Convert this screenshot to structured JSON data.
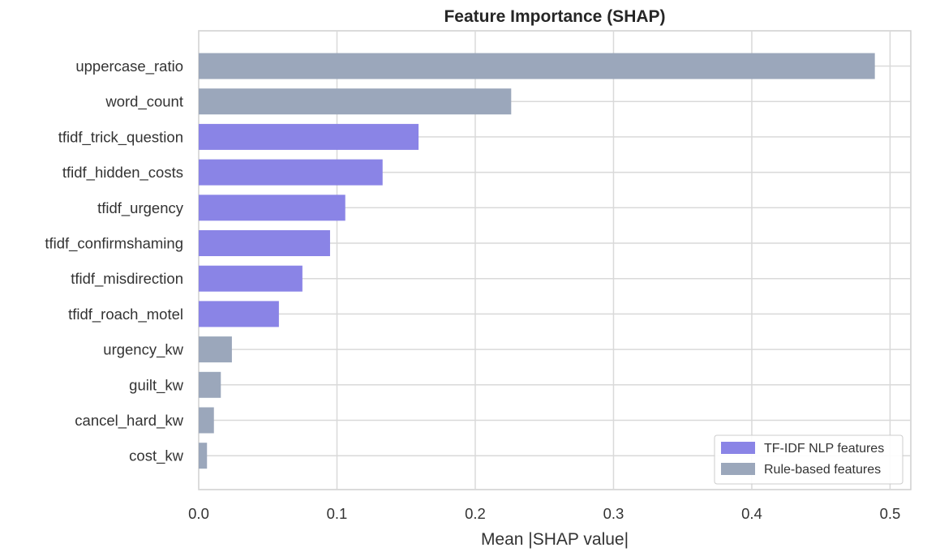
{
  "chart_data": {
    "type": "bar",
    "orientation": "horizontal",
    "title": "Feature Importance (SHAP)",
    "xlabel": "Mean |SHAP value|",
    "ylabel": "",
    "xlim": [
      0.0,
      0.515
    ],
    "xticks": [
      "0.0",
      "0.1",
      "0.2",
      "0.3",
      "0.4",
      "0.5"
    ],
    "grid": true,
    "legend_position": "bottom-right",
    "categories": [
      "uppercase_ratio",
      "word_count",
      "tfidf_trick_question",
      "tfidf_hidden_costs",
      "tfidf_urgency",
      "tfidf_confirmshaming",
      "tfidf_misdirection",
      "tfidf_roach_motel",
      "urgency_kw",
      "guilt_kw",
      "cancel_hard_kw",
      "cost_kw"
    ],
    "values": [
      0.489,
      0.226,
      0.159,
      0.133,
      0.106,
      0.095,
      0.075,
      0.058,
      0.024,
      0.016,
      0.011,
      0.006
    ],
    "groups": [
      "rule",
      "rule",
      "nlp",
      "nlp",
      "nlp",
      "nlp",
      "nlp",
      "nlp",
      "rule",
      "rule",
      "rule",
      "rule"
    ],
    "legend": [
      {
        "key": "nlp",
        "label": "TF-IDF NLP features",
        "color": "#8a84e6"
      },
      {
        "key": "rule",
        "label": "Rule-based features",
        "color": "#9ba7bb"
      }
    ]
  }
}
